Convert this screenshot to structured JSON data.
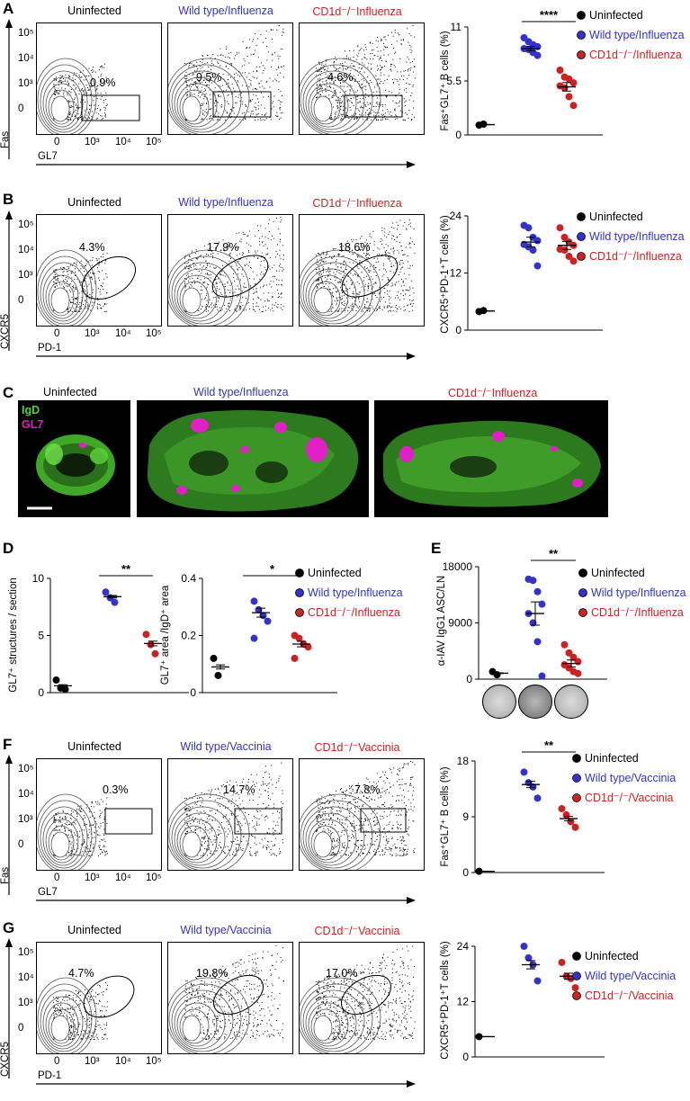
{
  "colors": {
    "uninfected": "#000000",
    "wildtype": "#3333cc",
    "cd1d": "#cc2222",
    "igd": "#55d233",
    "gl7": "#e01fc7"
  },
  "panelA": {
    "letter": "A",
    "titles": [
      "Uninfected",
      "Wild type/Influenza",
      "CD1d⁻/⁻Influenza"
    ],
    "percents": [
      "0.9%",
      "9.5%",
      "4.6%"
    ],
    "ylab": "Fas",
    "xlab": "GL7",
    "yticks": [
      "10⁵",
      "10⁴",
      "10³",
      "0"
    ],
    "xticks": [
      "0",
      "10³",
      "10⁴",
      "10⁵"
    ]
  },
  "panelB": {
    "letter": "B",
    "titles": [
      "Uninfected",
      "Wild type/Influenza",
      "CD1d⁻/⁻Influenza"
    ],
    "percents": [
      "4.3%",
      "17.9%",
      "18.6%"
    ],
    "ylab": "CXCR5",
    "xlab": "PD-1",
    "yticks": [
      "10⁵",
      "10⁴",
      "10³",
      "0"
    ],
    "xticks": [
      "0",
      "10³",
      "10⁴",
      "10⁵"
    ]
  },
  "panelC": {
    "letter": "C",
    "titles": [
      "Uninfected",
      "Wild type/Influenza",
      "CD1d⁻/⁻Influenza"
    ],
    "stain1": "IgD",
    "stain2": "GL7"
  },
  "panelD": {
    "letter": "D"
  },
  "panelE": {
    "letter": "E"
  },
  "panelF": {
    "letter": "F",
    "titles": [
      "Uninfected",
      "Wild type/Vaccinia",
      "CD1d⁻/⁻Vaccinia"
    ],
    "percents": [
      "0.3%",
      "14.7%",
      "7.8%"
    ],
    "ylab": "Fas",
    "xlab": "GL7",
    "yticks": [
      "10⁵",
      "10⁴",
      "10³",
      "0"
    ],
    "xticks": [
      "0",
      "10³",
      "10⁴",
      "10⁵"
    ]
  },
  "panelG": {
    "letter": "G",
    "titles": [
      "Uninfected",
      "Wild type/Vaccinia",
      "CD1d⁻/⁻Vaccinia"
    ],
    "percents": [
      "4.7%",
      "19.8%",
      "17.0%"
    ],
    "ylab": "CXCR5",
    "xlab": "PD-1",
    "yticks": [
      "10⁵",
      "10⁴",
      "10³",
      "0"
    ],
    "xticks": [
      "0",
      "10³",
      "10⁴",
      "10⁵"
    ]
  },
  "legend_influenza": [
    "Uninfected",
    "Wild type/Influenza",
    "CD1d⁻/⁻/Influenza"
  ],
  "legend_vaccinia": [
    "Uninfected",
    "Wild type/Vaccinia",
    "CD1d⁻/⁻/Vaccinia"
  ],
  "chart_data": [
    {
      "id": "A",
      "type": "scatter",
      "ylabel": "Fas⁺GL7⁺ B cells  (%)",
      "ylim": [
        0,
        11
      ],
      "yticks": [
        "0",
        "5.5",
        "11"
      ],
      "significance": "****",
      "series": [
        {
          "name": "Uninfected",
          "values": [
            1.0,
            1.1
          ],
          "mean": 1.05
        },
        {
          "name": "Wild type/Influenza",
          "values": [
            9.9,
            9.5,
            9.2,
            9.0,
            8.8,
            8.7,
            8.4,
            8.1
          ],
          "mean": 8.8
        },
        {
          "name": "CD1d⁻/⁻/Influenza",
          "values": [
            6.6,
            5.9,
            5.7,
            5.3,
            5.0,
            4.8,
            3.9,
            3.0
          ],
          "mean": 4.9
        }
      ]
    },
    {
      "id": "B",
      "type": "scatter",
      "ylabel": "CXCR5⁺PD-1⁺T cells (%)",
      "ylim": [
        0,
        24
      ],
      "yticks": [
        "0",
        "12",
        "24"
      ],
      "significance": "",
      "series": [
        {
          "name": "Uninfected",
          "values": [
            3.9,
            4.1
          ],
          "mean": 4.0
        },
        {
          "name": "Wild type/Influenza",
          "values": [
            22.0,
            21.5,
            19.5,
            18.8,
            18.0,
            17.5,
            16.8,
            13.5
          ],
          "mean": 18.5
        },
        {
          "name": "CD1d⁻/⁻/Influenza",
          "values": [
            21.5,
            19.5,
            18.5,
            17.8,
            17.0,
            16.8,
            15.5,
            14.5
          ],
          "mean": 17.8
        }
      ]
    },
    {
      "id": "D1",
      "type": "scatter",
      "ylabel": "GL7⁺ structures / section",
      "ylim": [
        0,
        10
      ],
      "yticks": [
        "0",
        "5",
        "10"
      ],
      "significance": "**",
      "series": [
        {
          "name": "Uninfected",
          "values": [
            1.1,
            0.4,
            0.3
          ],
          "mean": 0.6
        },
        {
          "name": "Wild type/Influenza",
          "values": [
            8.8,
            8.3,
            7.9
          ],
          "mean": 8.4
        },
        {
          "name": "CD1d⁻/⁻/Influenza",
          "values": [
            5.1,
            4.2,
            3.4
          ],
          "mean": 4.3
        }
      ]
    },
    {
      "id": "D2",
      "type": "scatter",
      "ylabel": "GL7⁺ area /IgD⁺ area",
      "ylim": [
        0,
        0.4
      ],
      "yticks": [
        "0",
        "0.2",
        "0.4"
      ],
      "significance": "*",
      "series": [
        {
          "name": "Uninfected",
          "values": [
            0.12,
            0.06
          ],
          "mean": 0.09
        },
        {
          "name": "Wild type/Influenza",
          "values": [
            0.32,
            0.29,
            0.27,
            0.25,
            0.19
          ],
          "mean": 0.28
        },
        {
          "name": "CD1d⁻/⁻/Influenza",
          "values": [
            0.2,
            0.19,
            0.17,
            0.16,
            0.12
          ],
          "mean": 0.17
        }
      ]
    },
    {
      "id": "E",
      "type": "scatter",
      "ylabel": "α-IAV IgG1 ASC/LN",
      "ylim": [
        0,
        18000
      ],
      "yticks": [
        "0",
        "9000",
        "18000"
      ],
      "significance": "**",
      "series": [
        {
          "name": "Uninfected",
          "values": [
            1200,
            700
          ],
          "mean": 950
        },
        {
          "name": "Wild type/Influenza",
          "values": [
            16000,
            15800,
            14000,
            12000,
            10500,
            9000,
            6000,
            500
          ],
          "mean": 10500
        },
        {
          "name": "CD1d⁻/⁻/Influenza",
          "values": [
            5500,
            4200,
            3500,
            2800,
            2300,
            1800,
            1200,
            900
          ],
          "mean": 2500
        }
      ]
    },
    {
      "id": "F",
      "type": "scatter",
      "ylabel": "Fas⁺GL7⁺ B cells  (%)",
      "ylim": [
        0,
        18
      ],
      "yticks": [
        "0",
        "9",
        "18"
      ],
      "significance": "**",
      "series": [
        {
          "name": "Uninfected",
          "values": [
            0.2
          ],
          "mean": 0.2
        },
        {
          "name": "Wild type/Vaccinia",
          "values": [
            16.2,
            14.5,
            13.8,
            12.0
          ],
          "mean": 14.2
        },
        {
          "name": "CD1d⁻/⁻/Vaccinia",
          "values": [
            10.3,
            9.3,
            8.2,
            7.3
          ],
          "mean": 8.7
        }
      ]
    },
    {
      "id": "G",
      "type": "scatter",
      "ylabel": "CXCR5⁺PD-1⁺T cells (%)",
      "ylim": [
        0,
        24
      ],
      "yticks": [
        "0",
        "12",
        "24"
      ],
      "significance": "",
      "series": [
        {
          "name": "Uninfected",
          "values": [
            4.4
          ],
          "mean": 4.4
        },
        {
          "name": "Wild type/Vaccinia",
          "values": [
            24.0,
            21.5,
            20.0,
            16.5
          ],
          "mean": 20.0
        },
        {
          "name": "CD1d⁻/⁻/Vaccinia",
          "values": [
            20.5,
            17.5,
            17.0,
            15.0
          ],
          "mean": 17.5
        }
      ]
    }
  ]
}
